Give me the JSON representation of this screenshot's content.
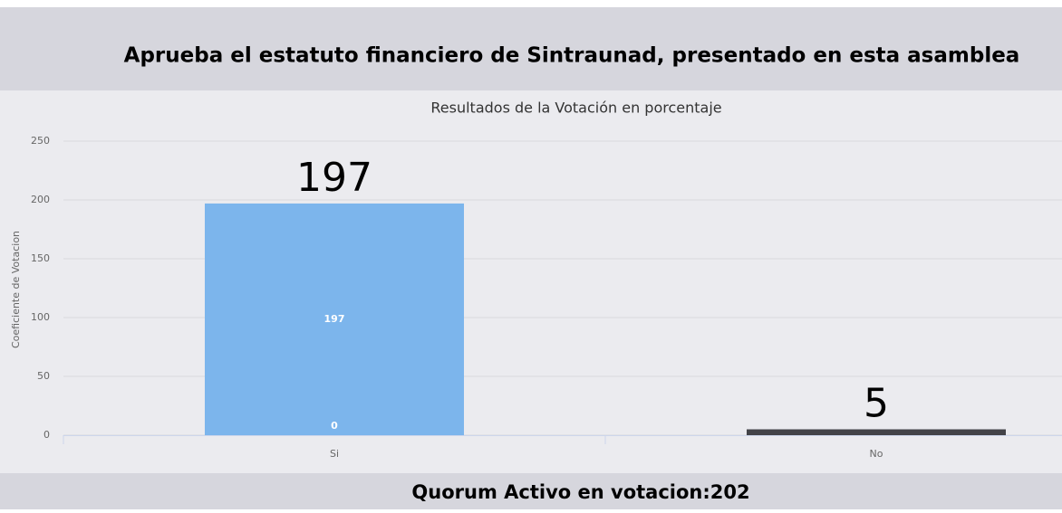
{
  "header": {
    "title": "Aprueba el estatuto financiero de Sintraunad, presentado en esta asamblea"
  },
  "chart_data": {
    "type": "bar",
    "title": "Resultados de la Votación en porcentaje",
    "y_label": "Coeficiente de Votacion",
    "categories": [
      "Si",
      "No"
    ],
    "series": [
      {
        "values": [
          197,
          5
        ],
        "colors": [
          "#7cb5ec",
          "#434348"
        ]
      },
      {
        "values": [
          0,
          null
        ]
      }
    ],
    "ylim": [
      0,
      250
    ],
    "yticks": [
      0,
      50,
      100,
      150,
      200,
      250
    ],
    "grid": true
  },
  "footer": {
    "text": "Quorum Activo en votacion:202"
  }
}
